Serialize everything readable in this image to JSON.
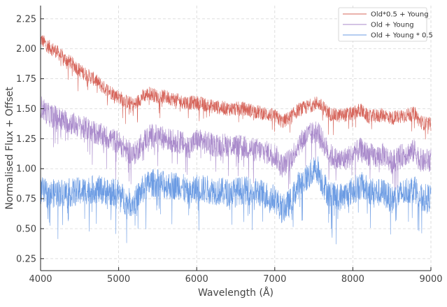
{
  "chart_data": {
    "type": "line",
    "title": "",
    "xlabel": "Wavelength (Å)",
    "ylabel": "Normalised Flux + Offset",
    "xlim": [
      4000,
      9000
    ],
    "ylim": [
      0.15,
      2.36
    ],
    "xticks": [
      4000,
      5000,
      6000,
      7000,
      8000,
      9000
    ],
    "yticks": [
      0.25,
      0.5,
      0.75,
      1.0,
      1.25,
      1.5,
      1.75,
      2.0,
      2.25
    ],
    "xtick_labels": [
      "4000",
      "5000",
      "6000",
      "7000",
      "8000",
      "9000"
    ],
    "ytick_labels": [
      "0.25",
      "0.50",
      "0.75",
      "1.00",
      "1.25",
      "1.50",
      "1.75",
      "2.00",
      "2.25"
    ],
    "grid": true,
    "legend_position": "top-right",
    "series": [
      {
        "name": "Old*0.5 + Young",
        "color": "#d6645a",
        "x": [
          4000,
          4100,
          4200,
          4300,
          4400,
          4500,
          4600,
          4700,
          4800,
          4900,
          5000,
          5100,
          5200,
          5300,
          5400,
          5500,
          5600,
          5700,
          5800,
          5900,
          6000,
          6200,
          6400,
          6600,
          6800,
          7000,
          7100,
          7200,
          7300,
          7400,
          7500,
          7550,
          7600,
          7700,
          7800,
          7900,
          8000,
          8100,
          8200,
          8300,
          8400,
          8500,
          8600,
          8700,
          8800,
          8850,
          8900,
          9000
        ],
        "y": [
          2.08,
          2.02,
          1.98,
          1.92,
          1.88,
          1.82,
          1.78,
          1.74,
          1.68,
          1.64,
          1.6,
          1.56,
          1.53,
          1.6,
          1.63,
          1.6,
          1.6,
          1.58,
          1.56,
          1.55,
          1.55,
          1.52,
          1.5,
          1.5,
          1.47,
          1.44,
          1.39,
          1.43,
          1.49,
          1.51,
          1.54,
          1.55,
          1.52,
          1.46,
          1.44,
          1.45,
          1.46,
          1.49,
          1.43,
          1.44,
          1.45,
          1.42,
          1.44,
          1.45,
          1.46,
          1.4,
          1.38,
          1.37
        ],
        "noise": 0.06
      },
      {
        "name": "Old + Young",
        "color": "#a98acb",
        "x": [
          4000,
          4100,
          4200,
          4300,
          4400,
          4500,
          4600,
          4700,
          4800,
          4900,
          5000,
          5100,
          5200,
          5300,
          5400,
          5500,
          5600,
          5700,
          5800,
          5900,
          6000,
          6200,
          6400,
          6600,
          6800,
          7000,
          7100,
          7200,
          7300,
          7400,
          7500,
          7550,
          7600,
          7700,
          7800,
          7900,
          8000,
          8100,
          8200,
          8300,
          8400,
          8500,
          8600,
          8700,
          8800,
          8850,
          8900,
          9000
        ],
        "y": [
          1.52,
          1.45,
          1.43,
          1.4,
          1.38,
          1.35,
          1.33,
          1.3,
          1.27,
          1.25,
          1.22,
          1.15,
          1.12,
          1.22,
          1.28,
          1.27,
          1.25,
          1.23,
          1.22,
          1.18,
          1.24,
          1.2,
          1.2,
          1.18,
          1.15,
          1.12,
          1.02,
          1.08,
          1.2,
          1.27,
          1.3,
          1.32,
          1.24,
          1.12,
          1.07,
          1.08,
          1.12,
          1.16,
          1.12,
          1.1,
          1.12,
          1.05,
          1.1,
          1.13,
          1.15,
          1.08,
          1.06,
          1.08
        ],
        "noise": 0.1
      },
      {
        "name": "Old + Young * 0.5",
        "color": "#6b9be3",
        "x": [
          4000,
          4100,
          4200,
          4300,
          4400,
          4500,
          4600,
          4700,
          4800,
          4900,
          5000,
          5100,
          5200,
          5300,
          5400,
          5500,
          5600,
          5700,
          5800,
          5900,
          6000,
          6200,
          6400,
          6600,
          6800,
          7000,
          7100,
          7200,
          7300,
          7400,
          7500,
          7550,
          7600,
          7700,
          7800,
          7900,
          8000,
          8100,
          8200,
          8300,
          8400,
          8500,
          8600,
          8700,
          8800,
          8850,
          8900,
          9000
        ],
        "y": [
          0.82,
          0.78,
          0.8,
          0.8,
          0.8,
          0.81,
          0.82,
          0.83,
          0.82,
          0.8,
          0.8,
          0.72,
          0.72,
          0.82,
          0.88,
          0.88,
          0.86,
          0.86,
          0.86,
          0.78,
          0.84,
          0.82,
          0.8,
          0.82,
          0.8,
          0.75,
          0.66,
          0.72,
          0.86,
          0.92,
          0.98,
          1.0,
          0.9,
          0.78,
          0.76,
          0.78,
          0.82,
          0.86,
          0.82,
          0.8,
          0.8,
          0.74,
          0.78,
          0.82,
          0.84,
          0.76,
          0.75,
          0.76
        ],
        "noise": 0.12
      }
    ]
  }
}
